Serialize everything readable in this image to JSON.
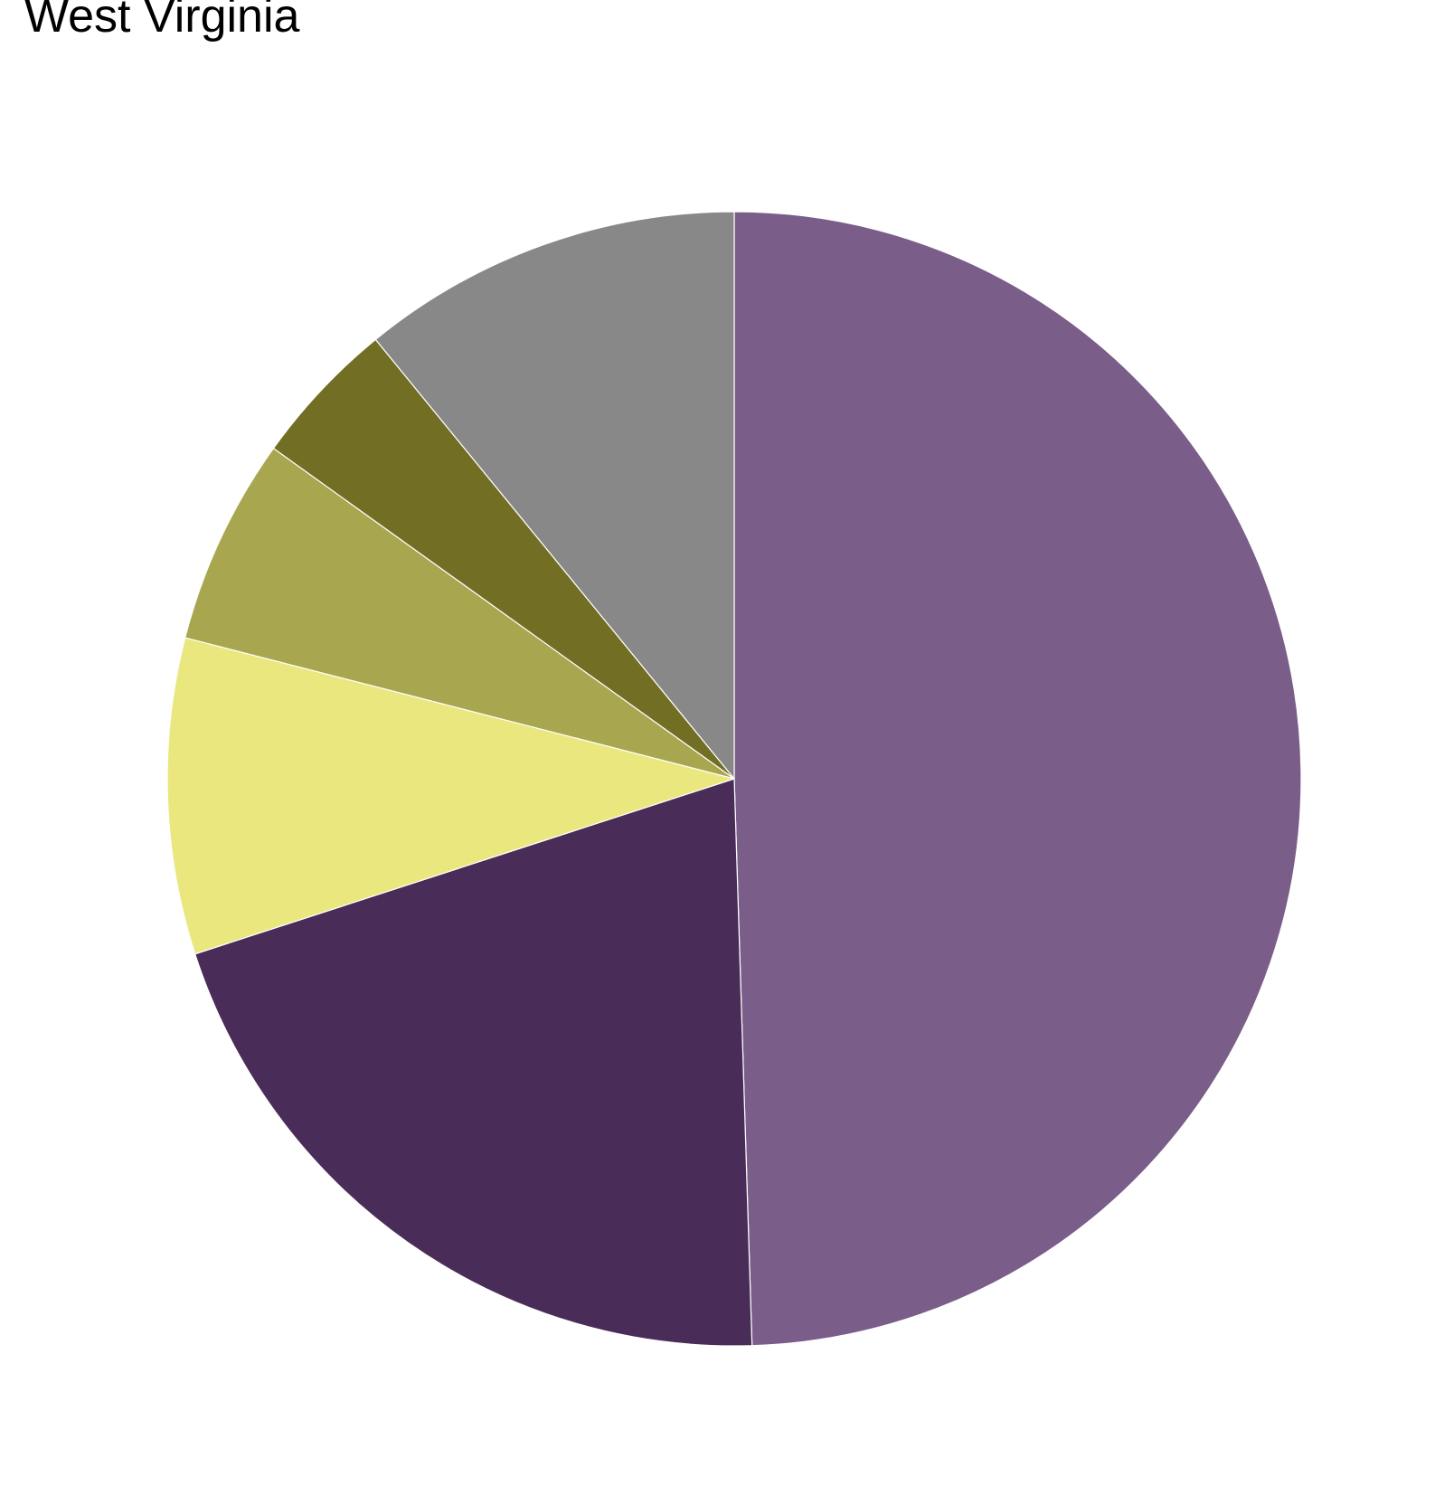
{
  "chart_data": {
    "type": "pie",
    "title": "West Virginia",
    "start_angle_deg": 0,
    "direction": "clockwise",
    "legend": "none",
    "slices": [
      {
        "value": 49.5,
        "color": "#7A5D89"
      },
      {
        "value": 20.5,
        "color": "#4A2C59"
      },
      {
        "value": 9.0,
        "color": "#E9E77D"
      },
      {
        "value": 5.9,
        "color": "#A8A74F"
      },
      {
        "value": 4.2,
        "color": "#726E24"
      },
      {
        "value": 10.9,
        "color": "#888888"
      }
    ]
  }
}
